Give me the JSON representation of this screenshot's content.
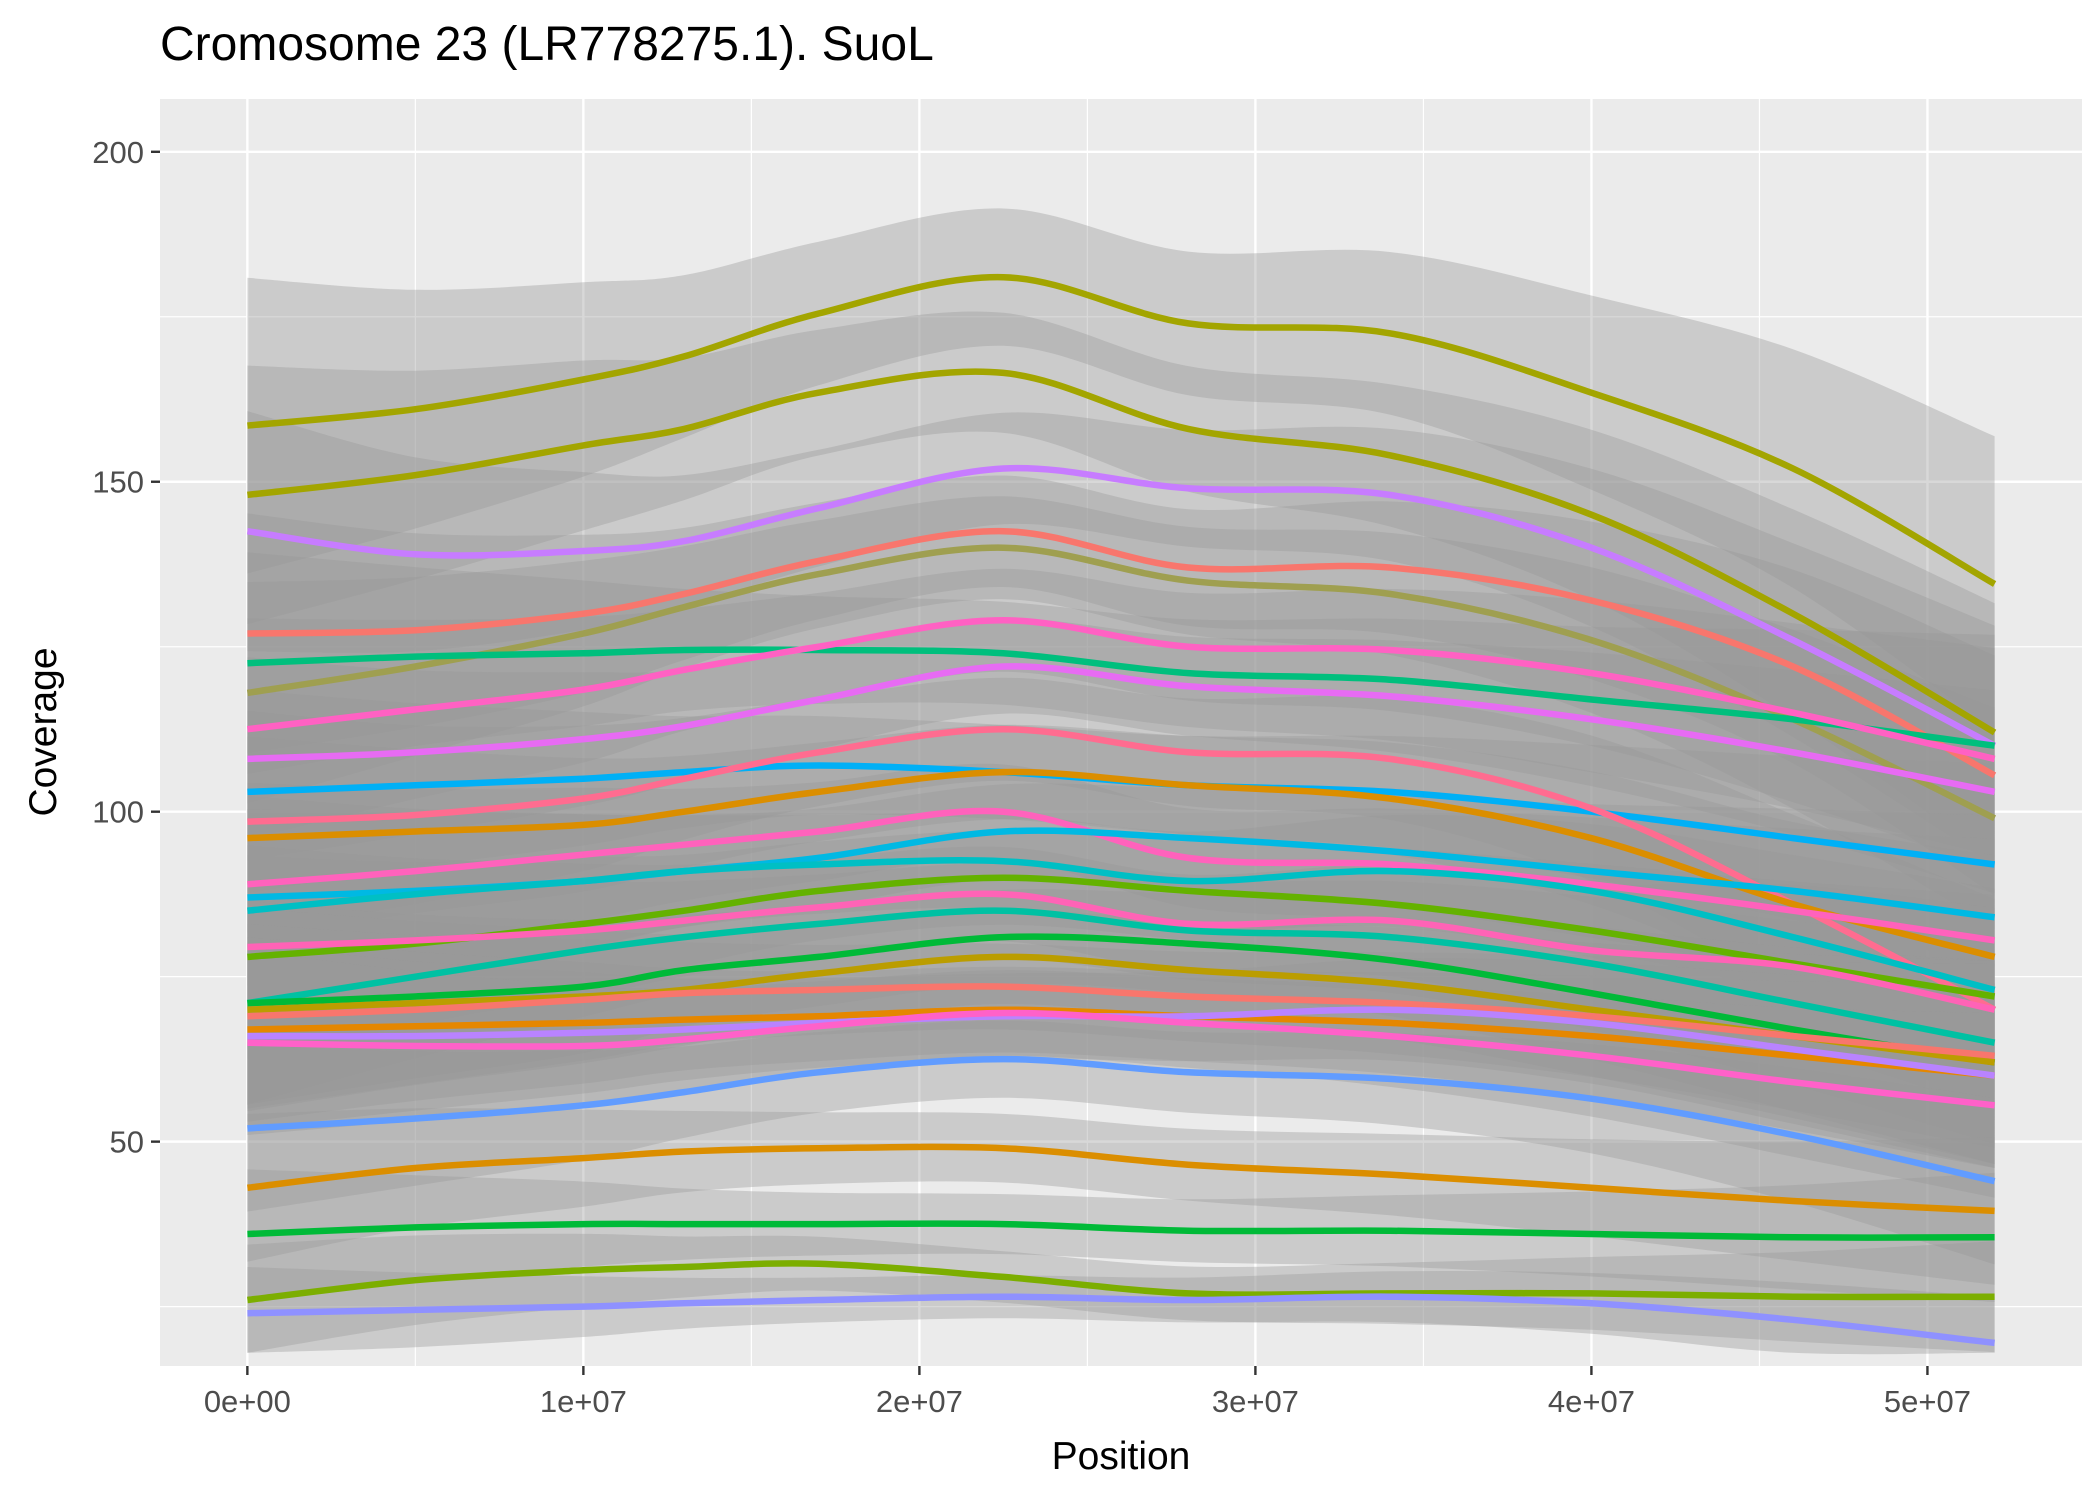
{
  "chart_data": {
    "type": "line",
    "title": "Cromosome 23 (LR778275.1). SuoL",
    "xlabel": "Position",
    "ylabel": "Coverage",
    "xlim": [
      -2600000,
      54600000
    ],
    "ylim": [
      16,
      208
    ],
    "x_ticks": [
      0,
      10000000,
      20000000,
      30000000,
      40000000,
      50000000
    ],
    "x_tick_labels": [
      "0e+00",
      "1e+07",
      "2e+07",
      "3e+07",
      "4e+07",
      "5e+07"
    ],
    "y_ticks": [
      50,
      100,
      150,
      200
    ],
    "y_tick_labels": [
      "50",
      "100",
      "150",
      "200"
    ],
    "grid": true,
    "legend": "none",
    "panel_background": "#ebebeb",
    "ribbon_color": "#999999",
    "x": [
      0,
      5000000,
      10000000,
      13000000,
      17000000,
      22500000,
      28000000,
      34000000,
      40000000,
      46000000,
      52000000
    ],
    "series": [
      {
        "color": "#A3A500",
        "values": [
          158.5,
          161,
          165.5,
          169,
          175.5,
          181,
          174,
          172.5,
          163.5,
          152,
          134.5
        ],
        "ci_width": 32
      },
      {
        "color": "#A3A500",
        "values": [
          148,
          151,
          155.5,
          158,
          163.5,
          166.5,
          158,
          154,
          145,
          130,
          112
        ],
        "ci_width": 28
      },
      {
        "color": "#C77CFF",
        "values": [
          142.5,
          139,
          139.5,
          141,
          146,
          152,
          149,
          148,
          140,
          126,
          110
        ],
        "ci_width": 26
      },
      {
        "color": "#F8766D",
        "values": [
          127,
          127.5,
          130,
          133,
          138,
          142.5,
          137,
          137,
          132,
          122,
          105.5
        ],
        "ci_width": 26
      },
      {
        "color": "#9F9F50",
        "values": [
          118,
          122,
          127,
          131,
          136,
          140,
          135,
          133,
          126,
          114,
          99
        ],
        "ci_width": 24
      },
      {
        "color": "#00BF7D",
        "values": [
          122.5,
          123.5,
          124,
          124.5,
          124.5,
          124,
          121,
          120,
          117,
          114,
          110
        ],
        "ci_width": 24
      },
      {
        "color": "#FF61C3",
        "values": [
          112.5,
          115.5,
          118.5,
          121.5,
          125,
          129,
          125,
          124.5,
          121,
          115,
          108
        ],
        "ci_width": 24
      },
      {
        "color": "#E76BF3",
        "values": [
          108,
          109,
          111,
          113,
          117,
          122,
          119,
          117.5,
          114,
          109,
          103
        ],
        "ci_width": 22
      },
      {
        "color": "#00B0F6",
        "values": [
          103,
          104,
          105,
          106,
          107,
          106,
          104,
          103,
          100,
          96,
          92
        ],
        "ci_width": 22
      },
      {
        "color": "#FF6C90",
        "values": [
          98.5,
          99.5,
          102,
          105,
          109,
          112.5,
          109,
          108,
          100.5,
          86,
          70
        ],
        "ci_width": 24
      },
      {
        "color": "#DB8E00",
        "values": [
          96,
          97,
          98,
          100,
          103,
          106,
          104,
          102,
          96,
          86,
          78
        ],
        "ci_width": 22
      },
      {
        "color": "#FF62BC",
        "values": [
          89,
          91,
          93.5,
          95,
          97,
          100,
          93,
          92,
          89,
          85,
          80.5
        ],
        "ci_width": 22
      },
      {
        "color": "#00B9E3",
        "values": [
          87,
          88,
          89.5,
          91,
          93,
          97,
          96,
          94,
          91,
          88,
          84
        ],
        "ci_width": 22
      },
      {
        "color": "#00BFC4",
        "values": [
          85,
          87.5,
          89.5,
          91,
          92,
          92.5,
          89.5,
          91,
          88,
          81,
          73
        ],
        "ci_width": 22
      },
      {
        "color": "#64B200",
        "values": [
          78,
          80,
          83,
          85,
          88,
          90,
          88,
          86,
          82,
          77,
          72
        ],
        "ci_width": 22
      },
      {
        "color": "#FF63B6",
        "values": [
          79.5,
          80.5,
          82,
          83.5,
          85.5,
          87.5,
          83,
          83.5,
          79,
          76.5,
          70
        ],
        "ci_width": 22
      },
      {
        "color": "#00C1A3",
        "values": [
          71,
          75,
          79,
          81,
          83,
          85,
          82,
          81,
          77,
          71,
          65
        ],
        "ci_width": 22
      },
      {
        "color": "#00BA38",
        "values": [
          71,
          72,
          73.5,
          76,
          78,
          81,
          80,
          77.5,
          72.5,
          67,
          62
        ],
        "ci_width": 22
      },
      {
        "color": "#BB9D00",
        "values": [
          70,
          71,
          72,
          73,
          75.5,
          78,
          76,
          74,
          70,
          66,
          62
        ],
        "ci_width": 22
      },
      {
        "color": "#F8766D",
        "values": [
          69,
          70,
          71.5,
          72.5,
          73,
          73.5,
          72,
          71,
          69,
          66,
          63
        ],
        "ci_width": 20
      },
      {
        "color": "#E58700",
        "values": [
          67,
          67.5,
          68,
          68.5,
          69,
          70,
          69,
          68,
          66,
          63,
          60
        ],
        "ci_width": 20
      },
      {
        "color": "#B983FF",
        "values": [
          66,
          66,
          66.5,
          67,
          68,
          69,
          69,
          70,
          68,
          64,
          60
        ],
        "ci_width": 20
      },
      {
        "color": "#FF61C9",
        "values": [
          65,
          64.5,
          64.5,
          65.5,
          67.5,
          69.5,
          68,
          66,
          63,
          59,
          55.5
        ],
        "ci_width": 20
      },
      {
        "color": "#619CFF",
        "values": [
          52,
          53.5,
          55.5,
          57.5,
          60.5,
          62.5,
          60.5,
          59.5,
          56.5,
          51,
          44
        ],
        "ci_width": 18
      },
      {
        "color": "#DB8E00",
        "values": [
          43,
          46,
          47.5,
          48.5,
          49,
          49,
          46.5,
          45,
          43,
          41,
          39.5
        ],
        "ci_width": 16
      },
      {
        "color": "#00BA38",
        "values": [
          36,
          37,
          37.5,
          37.5,
          37.5,
          37.5,
          36.5,
          36.5,
          36,
          35.5,
          35.5
        ],
        "ci_width": 14
      },
      {
        "color": "#7CAE00",
        "values": [
          26,
          29,
          30.5,
          31,
          31.5,
          29.5,
          27,
          27,
          27,
          26.5,
          26.5
        ],
        "ci_width": 12
      },
      {
        "color": "#8F91FF",
        "values": [
          24,
          24.5,
          25,
          25.5,
          26,
          26.5,
          26,
          26.5,
          25.5,
          23,
          19.5
        ],
        "ci_width": 10
      }
    ]
  }
}
